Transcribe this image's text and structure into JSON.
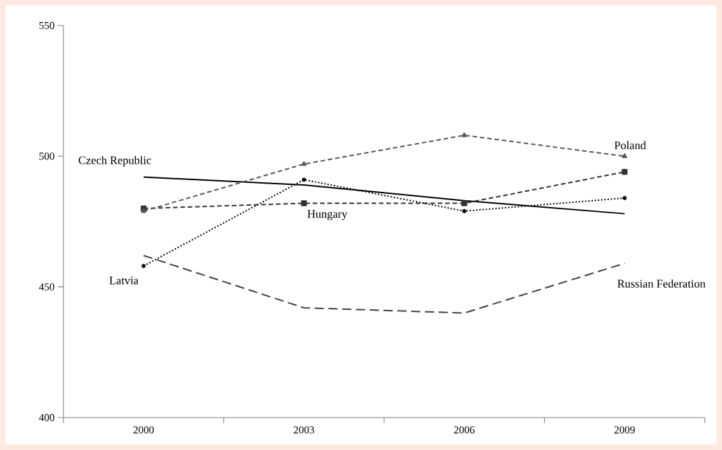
{
  "chart_data": {
    "type": "line",
    "categories": [
      "2000",
      "2003",
      "2006",
      "2009"
    ],
    "series": [
      {
        "name": "Czech Republic",
        "color": "#000000",
        "values": [
          492,
          489,
          483,
          478
        ],
        "line_style": "solid",
        "marker": "none"
      },
      {
        "name": "Hungary",
        "color": "#333333",
        "values": [
          480,
          482,
          482,
          494
        ],
        "line_style": "dashed",
        "marker": "square"
      },
      {
        "name": "Latvia",
        "color": "#000000",
        "values": [
          458,
          491,
          479,
          484
        ],
        "line_style": "dotted",
        "marker": "cross"
      },
      {
        "name": "Poland",
        "color": "#595959",
        "values": [
          479,
          497,
          508,
          500
        ],
        "line_style": "dashed",
        "marker": "triangle"
      },
      {
        "name": "Russian Federation",
        "color": "#404040",
        "values": [
          462,
          442,
          440,
          459
        ],
        "line_style": "longdashed",
        "marker": "none"
      }
    ],
    "ylim": [
      400,
      550
    ],
    "yticks": [
      400,
      450,
      500,
      550
    ],
    "grid": false,
    "legend": false
  }
}
